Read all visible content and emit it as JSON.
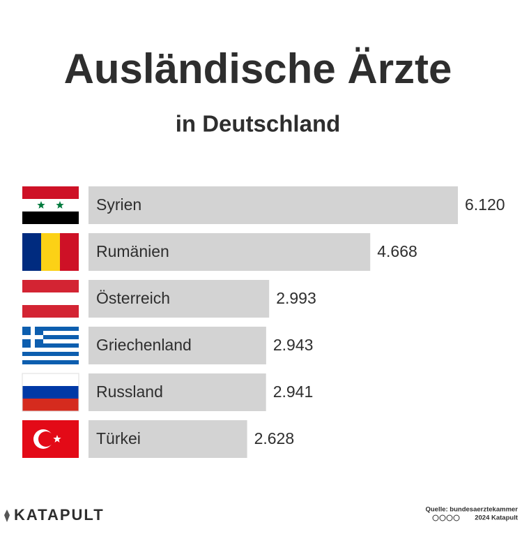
{
  "chart_data": {
    "type": "bar",
    "orientation": "horizontal",
    "title": "Ausländische Ärzte",
    "subtitle": "in Deutschland",
    "categories": [
      "Syrien",
      "Rumänien",
      "Österreich",
      "Griechenland",
      "Russland",
      "Türkei"
    ],
    "values": [
      6120,
      4668,
      2993,
      2943,
      2941,
      2628
    ],
    "value_labels": [
      "6.120",
      "4.668",
      "2.993",
      "2.943",
      "2.941",
      "2.628"
    ],
    "color": "#d3d3d3"
  },
  "footer": {
    "logo": "KATAPULT",
    "source": "Quelle: bundesaerztekammer",
    "copyright": "2024 Katapult"
  }
}
